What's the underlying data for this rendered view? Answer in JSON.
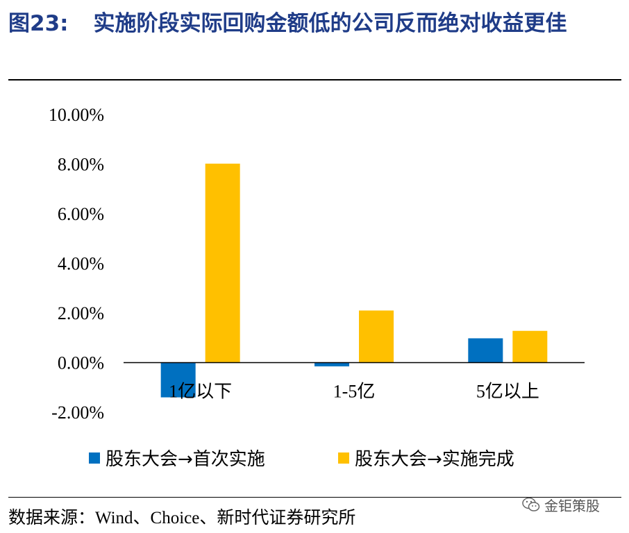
{
  "header": {
    "figure_number": "图23:",
    "title": "实施阶段实际回购金额低的公司反而绝对收益更佳"
  },
  "chart_data": {
    "type": "bar",
    "categories": [
      "1亿以下",
      "1-5亿",
      "5亿以上"
    ],
    "series": [
      {
        "name": "股东大会→首次实施",
        "color": "#0070c0",
        "values": [
          -1.4,
          -0.15,
          0.98
        ]
      },
      {
        "name": "股东大会→实施完成",
        "color": "#ffc000",
        "values": [
          8.02,
          2.1,
          1.28
        ]
      }
    ],
    "ylim": [
      -2,
      10
    ],
    "yticks": [
      "10.00%",
      "8.00%",
      "6.00%",
      "4.00%",
      "2.00%",
      "0.00%",
      "-2.00%"
    ],
    "ytick_values": [
      10,
      8,
      6,
      4,
      2,
      0,
      -2
    ],
    "grid": false,
    "legend_placement": "bottom"
  },
  "footer": {
    "source": "数据来源：Wind、Choice、新时代证券研究所",
    "brand": "金钜策股",
    "brand_icon": "wechat-icon"
  }
}
